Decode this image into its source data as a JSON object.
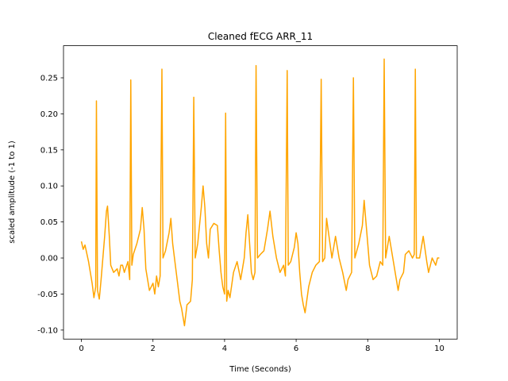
{
  "chart_data": {
    "type": "line",
    "title": "Cleaned fECG ARR_11",
    "x_label": "Time (Seconds)",
    "y_label": "scaled amplitude (-1 to 1)",
    "xlim": [
      -0.5,
      10.5
    ],
    "ylim": [
      -0.1125,
      0.2945
    ],
    "xticks": [
      0,
      2,
      4,
      6,
      8,
      10
    ],
    "yticks": [
      {
        "value": -0.1,
        "label": "-0.10"
      },
      {
        "value": -0.05,
        "label": "-0.05"
      },
      {
        "value": 0,
        "label": "0.00"
      },
      {
        "value": 0.05,
        "label": "0.05"
      },
      {
        "value": 0.1,
        "label": "0.10"
      },
      {
        "value": 0.15,
        "label": "0.15"
      },
      {
        "value": 0.2,
        "label": "0.20"
      },
      {
        "value": 0.25,
        "label": "0.25"
      }
    ],
    "grid": false,
    "x": [
      0,
      0.05,
      0.1,
      0.2,
      0.25,
      0.3,
      0.35,
      0.4,
      0.42,
      0.45,
      0.5,
      0.55,
      0.6,
      0.65,
      0.7,
      0.73,
      0.78,
      0.82,
      0.9,
      1.0,
      1.05,
      1.1,
      1.15,
      1.2,
      1.3,
      1.35,
      1.38,
      1.41,
      1.45,
      1.55,
      1.65,
      1.7,
      1.75,
      1.8,
      1.85,
      1.9,
      2.0,
      2.05,
      2.1,
      2.15,
      2.2,
      2.25,
      2.28,
      2.35,
      2.45,
      2.5,
      2.55,
      2.65,
      2.75,
      2.8,
      2.88,
      2.95,
      3.05,
      3.1,
      3.14,
      3.18,
      3.25,
      3.35,
      3.4,
      3.45,
      3.5,
      3.55,
      3.6,
      3.7,
      3.8,
      3.85,
      3.9,
      3.95,
      4.0,
      4.03,
      4.06,
      4.1,
      4.15,
      4.25,
      4.35,
      4.45,
      4.55,
      4.6,
      4.65,
      4.7,
      4.75,
      4.8,
      4.85,
      4.88,
      4.92,
      5.0,
      5.1,
      5.2,
      5.27,
      5.35,
      5.45,
      5.55,
      5.65,
      5.7,
      5.75,
      5.78,
      5.85,
      5.95,
      6.0,
      6.05,
      6.1,
      6.15,
      6.2,
      6.25,
      6.35,
      6.45,
      6.55,
      6.65,
      6.7,
      6.74,
      6.8,
      6.85,
      7.0,
      7.1,
      7.2,
      7.3,
      7.4,
      7.45,
      7.55,
      7.6,
      7.64,
      7.75,
      7.85,
      7.9,
      7.95,
      8.05,
      8.15,
      8.25,
      8.35,
      8.42,
      8.46,
      8.5,
      8.6,
      8.7,
      8.8,
      8.85,
      8.9,
      9.0,
      9.05,
      9.15,
      9.25,
      9.3,
      9.33,
      9.36,
      9.45,
      9.55,
      9.65,
      9.7,
      9.8,
      9.9,
      9.95,
      10.0
    ],
    "series": [
      {
        "name": "fECG",
        "color": "#ffa500",
        "values": [
          0.023,
          0.012,
          0.018,
          -0.005,
          -0.02,
          -0.035,
          -0.055,
          -0.04,
          0.218,
          -0.045,
          -0.057,
          -0.03,
          0.0,
          0.03,
          0.065,
          0.072,
          0.03,
          -0.01,
          -0.02,
          -0.015,
          -0.025,
          -0.01,
          -0.01,
          -0.02,
          -0.005,
          -0.03,
          0.247,
          -0.01,
          0.005,
          0.02,
          0.04,
          0.07,
          0.04,
          -0.015,
          -0.03,
          -0.045,
          -0.035,
          -0.05,
          -0.025,
          -0.04,
          -0.025,
          0.262,
          0.0,
          0.01,
          0.035,
          0.055,
          0.02,
          -0.02,
          -0.06,
          -0.07,
          -0.094,
          -0.065,
          -0.06,
          -0.03,
          0.223,
          0.0,
          0.02,
          0.07,
          0.1,
          0.07,
          0.02,
          0.0,
          0.04,
          0.048,
          0.045,
          0.01,
          -0.02,
          -0.04,
          -0.05,
          0.201,
          -0.06,
          -0.045,
          -0.055,
          -0.02,
          -0.005,
          -0.03,
          0.0,
          0.035,
          0.06,
          0.02,
          -0.02,
          -0.03,
          -0.02,
          0.267,
          0.0,
          0.005,
          0.01,
          0.04,
          0.065,
          0.03,
          0.0,
          -0.02,
          -0.01,
          -0.025,
          0.26,
          -0.01,
          -0.005,
          0.015,
          0.035,
          0.02,
          -0.02,
          -0.05,
          -0.065,
          -0.076,
          -0.04,
          -0.02,
          -0.01,
          -0.005,
          0.248,
          -0.005,
          0.0,
          0.055,
          0.0,
          0.03,
          0.0,
          -0.02,
          -0.045,
          -0.03,
          -0.02,
          0.25,
          0.0,
          0.02,
          0.045,
          0.08,
          0.05,
          -0.01,
          -0.03,
          -0.025,
          -0.005,
          -0.01,
          0.276,
          0.0,
          0.03,
          0.0,
          -0.03,
          -0.045,
          -0.03,
          -0.02,
          0.005,
          0.01,
          0.0,
          0.005,
          0.262,
          0.0,
          0.0,
          0.03,
          -0.005,
          -0.02,
          0.0,
          -0.01,
          0.0,
          0.0
        ]
      }
    ]
  }
}
